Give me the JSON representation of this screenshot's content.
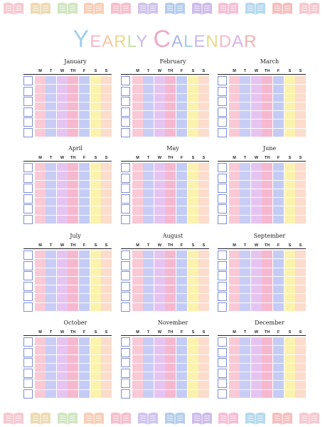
{
  "title": "YEARLY CALENDAR",
  "title_colors": [
    "#9fd0ee",
    "#f7b7c8",
    "#f3c6a6",
    "#ead88a",
    "#c7e3a8",
    "#c9b8ee",
    "#f0a8c7",
    "#aab6ec",
    "#9fd0ee",
    "#c9b8ee",
    "#ead88a",
    "#f7b7c8",
    "#d7b2e6",
    "#f0b0b0",
    "#aeb6e0"
  ],
  "day_headers": [
    "M",
    "T",
    "W",
    "TH",
    "F",
    "S",
    "S"
  ],
  "day_colors": [
    "#f9c9d6",
    "#c9cdf5",
    "#e6c4f2",
    "#f6b8cf",
    "#c4ccf5",
    "#fbf2ad",
    "#fcdccc"
  ],
  "months": [
    "January",
    "February",
    "March",
    "April",
    "May",
    "June",
    "July",
    "August",
    "September",
    "October",
    "November",
    "December"
  ],
  "book_colors": [
    "#f3bfc9",
    "#ebd4a4",
    "#c8e2b6",
    "#f6c5aa",
    "#f3b3c5",
    "#c8b8ea",
    "#a8c4e7",
    "#c5b0e6",
    "#f2b4cf",
    "#a8d2ec",
    "#f3b3b3"
  ]
}
